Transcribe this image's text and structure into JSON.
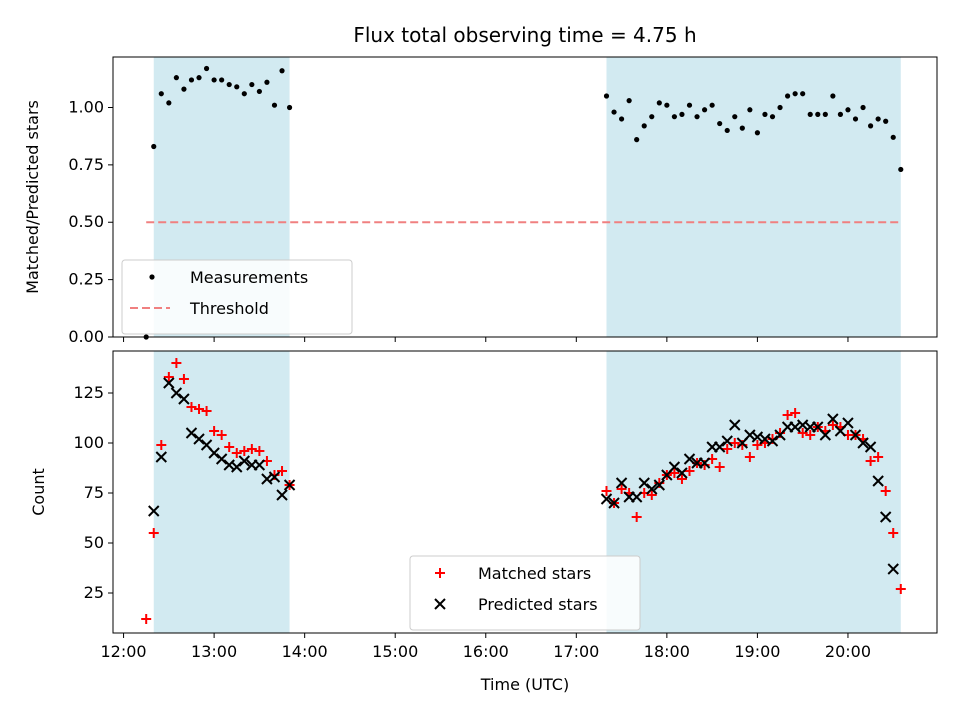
{
  "title": "Flux total observing time = 4.75 h",
  "xlabel": "Time (UTC)",
  "colors": {
    "band": "#add8e6",
    "matched": "#ff0000",
    "predicted": "#000000",
    "threshold": "#f08080"
  },
  "chart_data": [
    {
      "type": "scatter",
      "ylabel": "Matched/Predicted stars",
      "ylim": [
        0,
        1.22
      ],
      "yticks": [
        "0.00",
        "0.25",
        "0.50",
        "0.75",
        "1.00"
      ],
      "xlim": [
        "11:53",
        "20:59"
      ],
      "grid": false,
      "legend_position": "lower-left",
      "shaded_intervals": [
        [
          "12:20",
          "13:50"
        ],
        [
          "17:20",
          "20:35"
        ]
      ],
      "threshold": {
        "name": "Threshold",
        "value": 0.5,
        "x": [
          "12:15",
          "20:35"
        ]
      },
      "series": [
        {
          "name": "Measurements",
          "x": [
            "12:15",
            "12:20",
            "12:25",
            "12:30",
            "12:35",
            "12:40",
            "12:45",
            "12:50",
            "12:55",
            "13:00",
            "13:05",
            "13:10",
            "13:15",
            "13:20",
            "13:25",
            "13:30",
            "13:35",
            "13:40",
            "13:45",
            "13:50",
            "17:20",
            "17:25",
            "17:30",
            "17:35",
            "17:40",
            "17:45",
            "17:50",
            "17:55",
            "18:00",
            "18:05",
            "18:10",
            "18:15",
            "18:20",
            "18:25",
            "18:30",
            "18:35",
            "18:40",
            "18:45",
            "18:50",
            "18:55",
            "19:00",
            "19:05",
            "19:10",
            "19:15",
            "19:20",
            "19:25",
            "19:30",
            "19:35",
            "19:40",
            "19:45",
            "19:50",
            "19:55",
            "20:00",
            "20:05",
            "20:10",
            "20:15",
            "20:20",
            "20:25",
            "20:30",
            "20:35"
          ],
          "y": [
            0.0,
            0.83,
            1.06,
            1.02,
            1.13,
            1.08,
            1.12,
            1.13,
            1.17,
            1.12,
            1.12,
            1.1,
            1.09,
            1.06,
            1.1,
            1.07,
            1.11,
            1.01,
            1.16,
            1.0,
            1.05,
            0.98,
            0.95,
            1.03,
            0.86,
            0.92,
            0.96,
            1.02,
            1.01,
            0.96,
            0.97,
            1.01,
            0.96,
            0.99,
            1.01,
            0.93,
            0.9,
            0.96,
            0.91,
            0.99,
            0.89,
            0.97,
            0.96,
            1.0,
            1.05,
            1.06,
            1.06,
            0.97,
            0.97,
            0.97,
            1.05,
            0.97,
            0.99,
            0.95,
            1.0,
            0.92,
            0.95,
            0.94,
            0.87,
            0.73
          ]
        }
      ]
    },
    {
      "type": "scatter",
      "ylabel": "Count",
      "ylim": [
        5,
        146
      ],
      "yticks": [
        "25",
        "50",
        "75",
        "100",
        "125"
      ],
      "xticks": [
        "12:00",
        "13:00",
        "14:00",
        "15:00",
        "16:00",
        "17:00",
        "18:00",
        "19:00",
        "20:00"
      ],
      "xlim": [
        "11:53",
        "20:59"
      ],
      "grid": false,
      "legend_position": "lower-center",
      "shaded_intervals": [
        [
          "12:20",
          "13:50"
        ],
        [
          "17:20",
          "20:35"
        ]
      ],
      "series": [
        {
          "name": "Matched stars",
          "x": [
            "12:15",
            "12:20",
            "12:25",
            "12:30",
            "12:35",
            "12:40",
            "12:45",
            "12:50",
            "12:55",
            "13:00",
            "13:05",
            "13:10",
            "13:15",
            "13:20",
            "13:25",
            "13:30",
            "13:35",
            "13:40",
            "13:45",
            "13:50",
            "17:20",
            "17:25",
            "17:30",
            "17:35",
            "17:40",
            "17:45",
            "17:50",
            "17:55",
            "18:00",
            "18:05",
            "18:10",
            "18:15",
            "18:20",
            "18:25",
            "18:30",
            "18:35",
            "18:40",
            "18:45",
            "18:50",
            "18:55",
            "19:00",
            "19:05",
            "19:10",
            "19:15",
            "19:20",
            "19:25",
            "19:30",
            "19:35",
            "19:40",
            "19:45",
            "19:50",
            "19:55",
            "20:00",
            "20:05",
            "20:10",
            "20:15",
            "20:20",
            "20:25",
            "20:30",
            "20:35"
          ],
          "y": [
            12,
            55,
            99,
            133,
            140,
            132,
            118,
            117,
            116,
            106,
            104,
            98,
            95,
            96,
            97,
            96,
            91,
            84,
            86,
            79,
            76,
            70,
            77,
            75,
            63,
            75,
            74,
            80,
            84,
            85,
            82,
            86,
            90,
            89,
            92,
            88,
            97,
            100,
            99,
            93,
            99,
            100,
            102,
            105,
            114,
            115,
            105,
            104,
            108,
            106,
            109,
            108,
            104,
            104,
            102,
            91,
            93,
            76,
            55,
            27
          ]
        },
        {
          "name": "Predicted stars",
          "x": [
            "12:15",
            "12:20",
            "12:25",
            "12:30",
            "12:35",
            "12:40",
            "12:45",
            "12:50",
            "12:55",
            "13:00",
            "13:05",
            "13:10",
            "13:15",
            "13:20",
            "13:25",
            "13:30",
            "13:35",
            "13:40",
            "13:45",
            "13:50",
            "17:20",
            "17:25",
            "17:30",
            "17:35",
            "17:40",
            "17:45",
            "17:50",
            "17:55",
            "18:00",
            "18:05",
            "18:10",
            "18:15",
            "18:20",
            "18:25",
            "18:30",
            "18:35",
            "18:40",
            "18:45",
            "18:50",
            "18:55",
            "19:00",
            "19:05",
            "19:10",
            "19:15",
            "19:20",
            "19:25",
            "19:30",
            "19:35",
            "19:40",
            "19:45",
            "19:50",
            "19:55",
            "20:00",
            "20:05",
            "20:10",
            "20:15",
            "20:20",
            "20:25",
            "20:30",
            "20:35"
          ],
          "y": [
            null,
            66,
            93,
            130,
            125,
            122,
            105,
            102,
            99,
            95,
            92,
            89,
            88,
            91,
            89,
            89,
            82,
            83,
            74,
            79,
            72,
            70,
            80,
            73,
            73,
            80,
            77,
            79,
            84,
            88,
            85,
            92,
            90,
            90,
            98,
            98,
            101,
            109,
            100,
            104,
            103,
            102,
            101,
            104,
            108,
            108,
            109,
            108,
            108,
            104,
            112,
            106,
            110,
            104,
            100,
            98,
            81,
            63,
            37,
            null
          ]
        }
      ]
    }
  ]
}
